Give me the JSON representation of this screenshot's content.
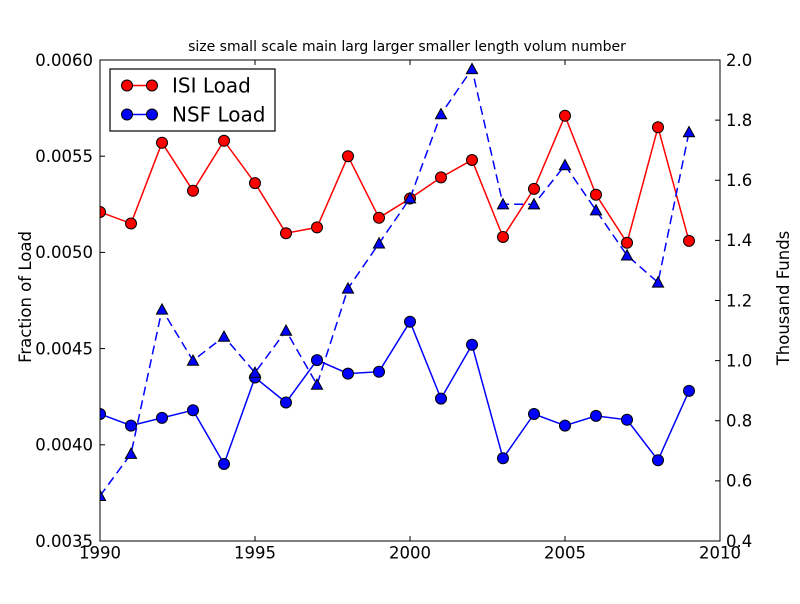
{
  "figure": {
    "title": "size small scale main larg larger smaller length volum number",
    "background_color": "#ffffff",
    "axis_color": "#000000"
  },
  "axes": {
    "x": {
      "tick_labels": [
        "1990",
        "1995",
        "2000",
        "2005",
        "2010"
      ],
      "range": [
        1990,
        2010
      ]
    },
    "y_left": {
      "label": "Fraction of Load",
      "tick_labels": [
        "0.0035",
        "0.0040",
        "0.0045",
        "0.0050",
        "0.0055",
        "0.0060"
      ],
      "range": [
        0.0035,
        0.006
      ]
    },
    "y_right": {
      "label": "Thousand Funds",
      "tick_labels": [
        "0.4",
        "0.6",
        "0.8",
        "1.0",
        "1.2",
        "1.4",
        "1.6",
        "1.8",
        "2.0"
      ],
      "range": [
        0.4,
        2.0
      ]
    }
  },
  "legend": {
    "items": [
      {
        "label": "ISI Load",
        "color": "#ff0000",
        "marker": "circle"
      },
      {
        "label": "NSF Load",
        "color": "#0000ff",
        "marker": "circle"
      }
    ]
  },
  "chart_data": {
    "type": "line",
    "title": "size small scale main larg larger smaller length volum number",
    "xlabel": "",
    "ylabel_left": "Fraction of Load",
    "ylabel_right": "Thousand Funds",
    "xlim": [
      1990,
      2010
    ],
    "ylim_left": [
      0.0035,
      0.006
    ],
    "ylim_right": [
      0.4,
      2.0
    ],
    "grid": false,
    "legend_position": "upper left",
    "x": [
      1990,
      1991,
      1992,
      1993,
      1994,
      1995,
      1996,
      1997,
      1998,
      1999,
      2000,
      2001,
      2002,
      2003,
      2004,
      2005,
      2006,
      2007,
      2008,
      2009
    ],
    "series": [
      {
        "name": "ISI Load",
        "axis": "left",
        "color": "#ff0000",
        "marker": "circle",
        "line_style": "solid",
        "values": [
          0.00521,
          0.00515,
          0.00557,
          0.00532,
          0.00558,
          0.00536,
          0.0051,
          0.00513,
          0.0055,
          0.00518,
          0.00528,
          0.00539,
          0.00548,
          0.00508,
          0.00533,
          0.00571,
          0.0053,
          0.00505,
          0.00565,
          0.00506
        ]
      },
      {
        "name": "NSF Load",
        "axis": "left",
        "color": "#0000ff",
        "marker": "circle",
        "line_style": "solid",
        "values": [
          0.00416,
          0.0041,
          0.00414,
          0.00418,
          0.0039,
          0.00435,
          0.00422,
          0.00444,
          0.00437,
          0.00438,
          0.00464,
          0.00424,
          0.00452,
          0.00393,
          0.00416,
          0.0041,
          0.00415,
          0.00413,
          0.00392,
          0.00428
        ]
      },
      {
        "name": "Thousand Funds",
        "axis": "right",
        "color": "#0000ff",
        "marker": "triangle-up",
        "line_style": "dashed",
        "values": [
          0.55,
          0.69,
          1.17,
          1.0,
          1.08,
          0.96,
          1.1,
          0.92,
          1.24,
          1.39,
          1.54,
          1.82,
          1.97,
          1.52,
          1.52,
          1.65,
          1.5,
          1.35,
          1.26,
          1.76
        ]
      }
    ]
  }
}
